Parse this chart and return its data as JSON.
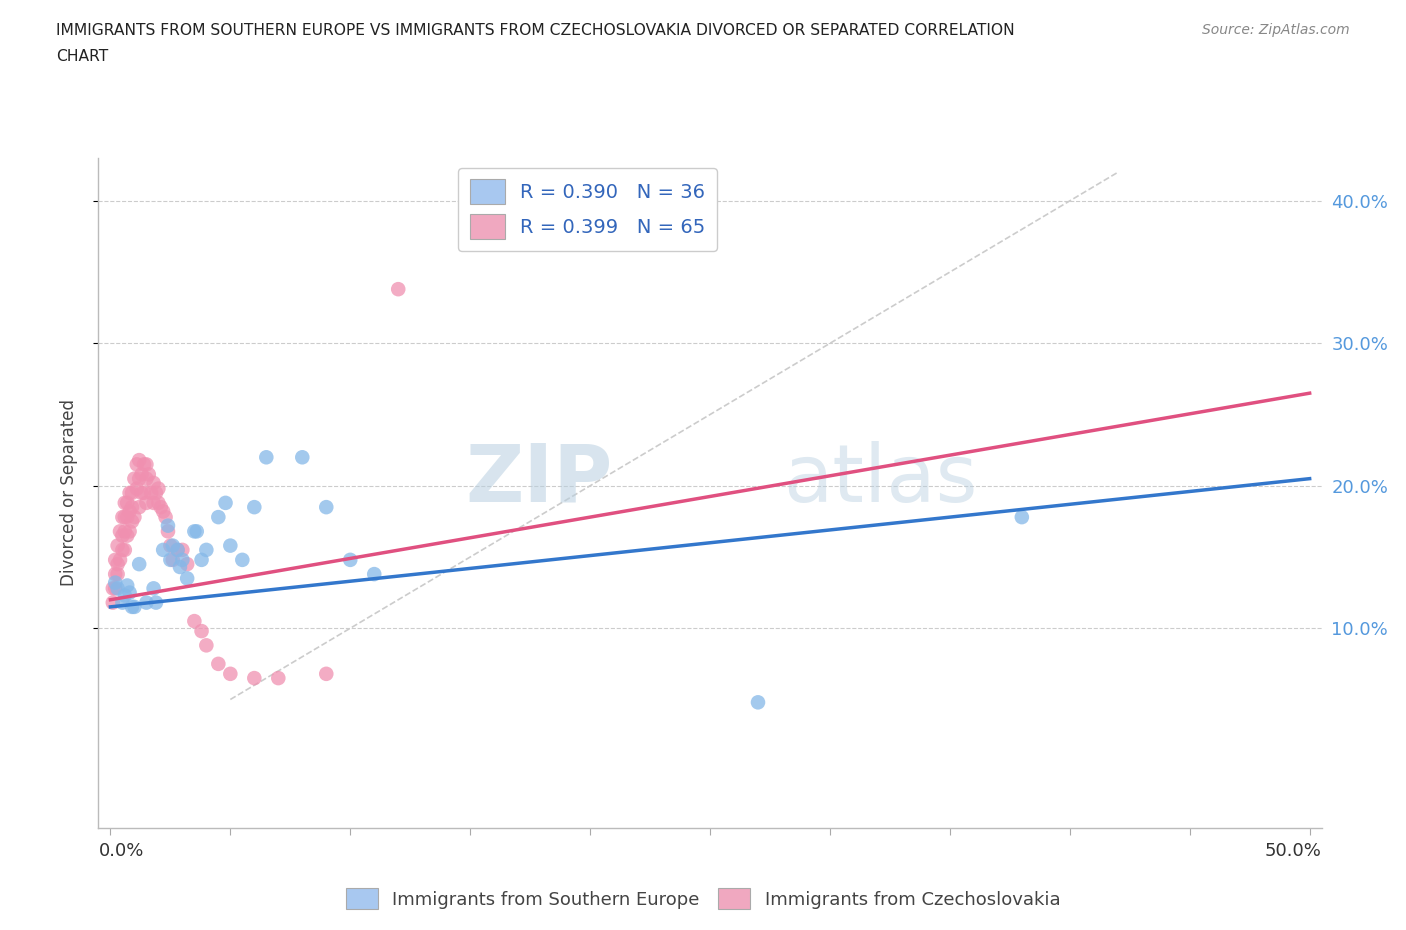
{
  "title_line1": "IMMIGRANTS FROM SOUTHERN EUROPE VS IMMIGRANTS FROM CZECHOSLOVAKIA DIVORCED OR SEPARATED CORRELATION",
  "title_line2": "CHART",
  "source": "Source: ZipAtlas.com",
  "ylabel": "Divorced or Separated",
  "legend_1_label": "Immigrants from Southern Europe",
  "legend_1_R": "R = 0.390",
  "legend_1_N": "N = 36",
  "legend_1_color": "#a8c8f0",
  "legend_2_label": "Immigrants from Czechoslovakia",
  "legend_2_R": "R = 0.399",
  "legend_2_N": "N = 65",
  "legend_2_color": "#f0a8c0",
  "blue_scatter_color": "#85b8e8",
  "pink_scatter_color": "#f090b0",
  "blue_line_color": "#3377cc",
  "pink_line_color": "#e05080",
  "diag_line_color": "#cccccc",
  "watermark_zip": "ZIP",
  "watermark_atlas": "atlas",
  "blue_x": [
    0.002,
    0.003,
    0.005,
    0.006,
    0.007,
    0.008,
    0.009,
    0.01,
    0.012,
    0.015,
    0.018,
    0.019,
    0.022,
    0.024,
    0.025,
    0.026,
    0.028,
    0.029,
    0.03,
    0.032,
    0.035,
    0.036,
    0.038,
    0.04,
    0.045,
    0.048,
    0.05,
    0.055,
    0.06,
    0.065,
    0.08,
    0.09,
    0.1,
    0.11,
    0.38,
    0.27
  ],
  "blue_y": [
    0.132,
    0.128,
    0.118,
    0.123,
    0.13,
    0.125,
    0.115,
    0.115,
    0.145,
    0.118,
    0.128,
    0.118,
    0.155,
    0.172,
    0.148,
    0.158,
    0.155,
    0.143,
    0.148,
    0.135,
    0.168,
    0.168,
    0.148,
    0.155,
    0.178,
    0.188,
    0.158,
    0.148,
    0.185,
    0.22,
    0.22,
    0.185,
    0.148,
    0.138,
    0.178,
    0.048
  ],
  "pink_x": [
    0.001,
    0.001,
    0.002,
    0.002,
    0.002,
    0.003,
    0.003,
    0.003,
    0.004,
    0.004,
    0.005,
    0.005,
    0.005,
    0.006,
    0.006,
    0.006,
    0.006,
    0.007,
    0.007,
    0.007,
    0.008,
    0.008,
    0.008,
    0.009,
    0.009,
    0.009,
    0.01,
    0.01,
    0.011,
    0.011,
    0.012,
    0.012,
    0.012,
    0.013,
    0.013,
    0.014,
    0.014,
    0.015,
    0.015,
    0.015,
    0.016,
    0.017,
    0.018,
    0.018,
    0.019,
    0.02,
    0.02,
    0.021,
    0.022,
    0.023,
    0.024,
    0.025,
    0.026,
    0.028,
    0.03,
    0.032,
    0.035,
    0.038,
    0.04,
    0.045,
    0.05,
    0.06,
    0.07,
    0.09,
    0.12
  ],
  "pink_y": [
    0.128,
    0.118,
    0.128,
    0.138,
    0.148,
    0.138,
    0.145,
    0.158,
    0.148,
    0.168,
    0.155,
    0.165,
    0.178,
    0.155,
    0.168,
    0.178,
    0.188,
    0.165,
    0.178,
    0.188,
    0.168,
    0.182,
    0.195,
    0.175,
    0.185,
    0.195,
    0.178,
    0.205,
    0.198,
    0.215,
    0.185,
    0.205,
    0.218,
    0.195,
    0.208,
    0.195,
    0.215,
    0.188,
    0.205,
    0.215,
    0.208,
    0.195,
    0.188,
    0.202,
    0.195,
    0.188,
    0.198,
    0.185,
    0.182,
    0.178,
    0.168,
    0.158,
    0.148,
    0.155,
    0.155,
    0.145,
    0.105,
    0.098,
    0.088,
    0.075,
    0.068,
    0.065,
    0.065,
    0.068,
    0.338
  ],
  "blue_line_x": [
    0.0,
    0.5
  ],
  "blue_line_y": [
    0.115,
    0.205
  ],
  "pink_line_x": [
    0.0,
    0.5
  ],
  "pink_line_y": [
    0.12,
    0.265
  ],
  "diag_line_x": [
    0.05,
    0.42
  ],
  "diag_line_y": [
    0.05,
    0.42
  ],
  "xlim": [
    -0.005,
    0.505
  ],
  "ylim": [
    -0.04,
    0.43
  ],
  "ytick_vals": [
    0.1,
    0.2,
    0.3,
    0.4
  ],
  "ytick_labels": [
    "10.0%",
    "20.0%",
    "30.0%",
    "40.0%"
  ],
  "xtick_vals": [
    0.0,
    0.05,
    0.1,
    0.15,
    0.2,
    0.25,
    0.3,
    0.35,
    0.4,
    0.45,
    0.5
  ]
}
